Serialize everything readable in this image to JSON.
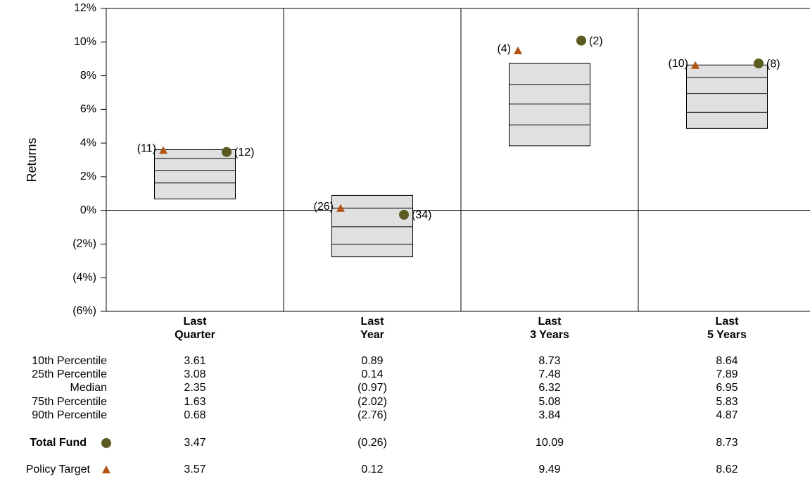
{
  "chart_data": {
    "type": "box",
    "y_label": "Returns",
    "categories": [
      "Last Quarter",
      "Last Year",
      "Last 3 Years",
      "Last 5 Years"
    ],
    "ylim": [
      -6,
      12
    ],
    "yticks": [
      {
        "value": -6,
        "label": "(6%)"
      },
      {
        "value": -4,
        "label": "(4%)"
      },
      {
        "value": -2,
        "label": "(2%)"
      },
      {
        "value": 0,
        "label": "0%"
      },
      {
        "value": 2,
        "label": "2%"
      },
      {
        "value": 4,
        "label": "4%"
      },
      {
        "value": 6,
        "label": "6%"
      },
      {
        "value": 8,
        "label": "8%"
      },
      {
        "value": 10,
        "label": "10%"
      },
      {
        "value": 12,
        "label": "12%"
      }
    ],
    "box_color": "#e0e0e0",
    "percentiles": [
      {
        "name": "10th Percentile",
        "values": [
          3.61,
          0.89,
          8.73,
          8.64
        ],
        "value_labels": [
          "3.61",
          "0.89",
          "8.73",
          "8.64"
        ]
      },
      {
        "name": "25th Percentile",
        "values": [
          3.08,
          0.14,
          7.48,
          7.89
        ],
        "value_labels": [
          "3.08",
          "0.14",
          "7.48",
          "7.89"
        ]
      },
      {
        "name": "Median",
        "values": [
          2.35,
          -0.97,
          6.32,
          6.95
        ],
        "value_labels": [
          "2.35",
          "(0.97)",
          "6.32",
          "6.95"
        ]
      },
      {
        "name": "75th Percentile",
        "values": [
          1.63,
          -2.02,
          5.08,
          5.83
        ],
        "value_labels": [
          "1.63",
          "(2.02)",
          "5.08",
          "5.83"
        ]
      },
      {
        "name": "90th Percentile",
        "values": [
          0.68,
          -2.76,
          3.84,
          4.87
        ],
        "value_labels": [
          "0.68",
          "(2.76)",
          "3.84",
          "4.87"
        ]
      }
    ],
    "series": [
      {
        "name": "Total Fund",
        "color": "#5b5a1f",
        "marker": "circle",
        "values": [
          3.47,
          -0.26,
          10.09,
          8.73
        ],
        "value_labels": [
          "3.47",
          "(0.26)",
          "10.09",
          "8.73"
        ],
        "rank_labels": [
          "(12)",
          "(34)",
          "(2)",
          "(8)"
        ],
        "rank_color": "#5b5a1f"
      },
      {
        "name": "Policy Target",
        "color": "#b5520e",
        "marker": "triangle",
        "values": [
          3.57,
          0.12,
          9.49,
          8.62
        ],
        "value_labels": [
          "3.57",
          "0.12",
          "9.49",
          "8.62"
        ],
        "rank_labels": [
          "(11)",
          "(26)",
          "(4)",
          "(10)"
        ],
        "rank_color": "#b5520e"
      }
    ]
  }
}
